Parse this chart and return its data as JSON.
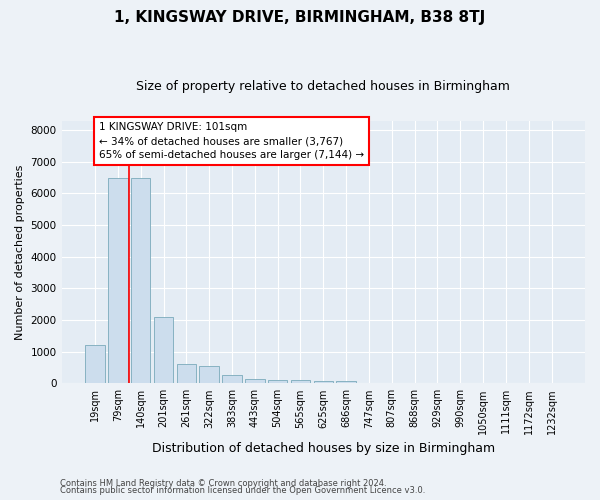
{
  "title": "1, KINGSWAY DRIVE, BIRMINGHAM, B38 8TJ",
  "subtitle": "Size of property relative to detached houses in Birmingham",
  "xlabel": "Distribution of detached houses by size in Birmingham",
  "ylabel": "Number of detached properties",
  "categories": [
    "19sqm",
    "79sqm",
    "140sqm",
    "201sqm",
    "261sqm",
    "322sqm",
    "383sqm",
    "443sqm",
    "504sqm",
    "565sqm",
    "625sqm",
    "686sqm",
    "747sqm",
    "807sqm",
    "868sqm",
    "929sqm",
    "990sqm",
    "1050sqm",
    "1111sqm",
    "1172sqm",
    "1232sqm"
  ],
  "values": [
    1200,
    6500,
    6500,
    2100,
    600,
    550,
    250,
    150,
    120,
    90,
    80,
    80,
    20,
    15,
    10,
    5,
    3,
    2,
    1,
    1,
    0
  ],
  "bar_color": "#ccdded",
  "bar_edge_color": "#7aaabb",
  "vline_x_index": 1.5,
  "vline_color": "red",
  "annotation_text": "1 KINGSWAY DRIVE: 101sqm\n← 34% of detached houses are smaller (3,767)\n65% of semi-detached houses are larger (7,144) →",
  "annotation_box_color": "white",
  "annotation_box_edge": "red",
  "ylim": [
    0,
    8300
  ],
  "yticks": [
    0,
    1000,
    2000,
    3000,
    4000,
    5000,
    6000,
    7000,
    8000
  ],
  "footer_line1": "Contains HM Land Registry data © Crown copyright and database right 2024.",
  "footer_line2": "Contains public sector information licensed under the Open Government Licence v3.0.",
  "bg_color": "#edf2f7",
  "plot_bg_color": "#e4ecf4",
  "title_fontsize": 11,
  "subtitle_fontsize": 9,
  "ylabel_fontsize": 8,
  "xlabel_fontsize": 9,
  "tick_fontsize": 7,
  "footer_fontsize": 6,
  "ann_fontsize": 7.5
}
